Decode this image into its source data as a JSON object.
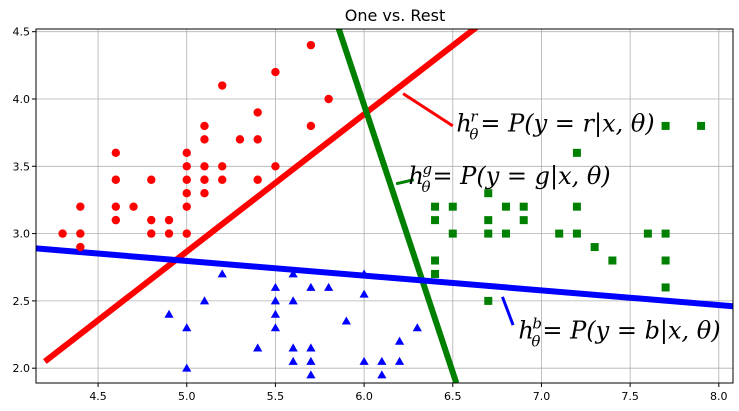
{
  "chart_data": {
    "type": "scatter",
    "title": "One vs. Rest",
    "xlim": [
      4.15,
      8.08
    ],
    "ylim": [
      1.89,
      4.52
    ],
    "grid": true,
    "x_ticks": [
      "4.5",
      "5.0",
      "5.5",
      "6.0",
      "6.5",
      "7.0",
      "7.5",
      "8.0"
    ],
    "y_ticks": [
      "2.0",
      "2.5",
      "3.0",
      "3.5",
      "4.0",
      "4.5"
    ],
    "series": [
      {
        "marker": "circle",
        "color": "#ff0000",
        "points": [
          [
            4.3,
            3.0
          ],
          [
            4.4,
            2.9
          ],
          [
            4.4,
            3.0
          ],
          [
            4.4,
            3.2
          ],
          [
            4.6,
            3.1
          ],
          [
            4.6,
            3.2
          ],
          [
            4.6,
            3.4
          ],
          [
            4.6,
            3.6
          ],
          [
            4.7,
            3.2
          ],
          [
            4.8,
            3.0
          ],
          [
            4.8,
            3.1
          ],
          [
            4.8,
            3.4
          ],
          [
            4.9,
            3.0
          ],
          [
            4.9,
            3.1
          ],
          [
            5.0,
            3.0
          ],
          [
            5.0,
            3.2
          ],
          [
            5.0,
            3.3
          ],
          [
            5.0,
            3.4
          ],
          [
            5.0,
            3.5
          ],
          [
            5.0,
            3.6
          ],
          [
            5.1,
            3.3
          ],
          [
            5.1,
            3.4
          ],
          [
            5.1,
            3.5
          ],
          [
            5.1,
            3.7
          ],
          [
            5.1,
            3.8
          ],
          [
            5.2,
            3.4
          ],
          [
            5.2,
            3.5
          ],
          [
            5.2,
            4.1
          ],
          [
            5.3,
            3.7
          ],
          [
            5.4,
            3.4
          ],
          [
            5.4,
            3.7
          ],
          [
            5.4,
            3.9
          ],
          [
            5.5,
            3.5
          ],
          [
            5.5,
            4.2
          ],
          [
            5.7,
            3.8
          ],
          [
            5.7,
            4.4
          ],
          [
            5.8,
            4.0
          ]
        ]
      },
      {
        "marker": "square",
        "color": "#008000",
        "points": [
          [
            6.4,
            2.7
          ],
          [
            6.4,
            2.8
          ],
          [
            6.4,
            3.1
          ],
          [
            6.4,
            3.2
          ],
          [
            6.5,
            3.0
          ],
          [
            6.5,
            3.2
          ],
          [
            6.7,
            2.5
          ],
          [
            6.7,
            3.0
          ],
          [
            6.7,
            3.1
          ],
          [
            6.7,
            3.3
          ],
          [
            6.8,
            3.0
          ],
          [
            6.8,
            3.2
          ],
          [
            6.9,
            3.1
          ],
          [
            6.9,
            3.2
          ],
          [
            7.1,
            3.0
          ],
          [
            7.2,
            3.0
          ],
          [
            7.2,
            3.2
          ],
          [
            7.2,
            3.6
          ],
          [
            7.3,
            2.9
          ],
          [
            7.4,
            2.8
          ],
          [
            7.6,
            3.0
          ],
          [
            7.7,
            2.6
          ],
          [
            7.7,
            2.8
          ],
          [
            7.7,
            3.0
          ],
          [
            7.7,
            3.8
          ],
          [
            7.9,
            3.8
          ]
        ]
      },
      {
        "marker": "triangle",
        "color": "#0000ff",
        "points": [
          [
            4.9,
            2.4
          ],
          [
            5.0,
            2.0
          ],
          [
            5.0,
            2.3
          ],
          [
            5.1,
            2.5
          ],
          [
            5.2,
            2.7
          ],
          [
            5.4,
            2.15
          ],
          [
            5.5,
            2.3
          ],
          [
            5.5,
            2.4
          ],
          [
            5.5,
            2.5
          ],
          [
            5.5,
            2.6
          ],
          [
            5.6,
            2.05
          ],
          [
            5.6,
            2.15
          ],
          [
            5.6,
            2.5
          ],
          [
            5.6,
            2.7
          ],
          [
            5.7,
            1.95
          ],
          [
            5.7,
            2.05
          ],
          [
            5.7,
            2.15
          ],
          [
            5.7,
            2.6
          ],
          [
            5.8,
            2.6
          ],
          [
            5.9,
            2.35
          ],
          [
            6.0,
            2.05
          ],
          [
            6.0,
            2.55
          ],
          [
            6.0,
            2.7
          ],
          [
            6.1,
            1.95
          ],
          [
            6.1,
            2.05
          ],
          [
            6.2,
            2.05
          ],
          [
            6.2,
            2.2
          ],
          [
            6.3,
            2.3
          ]
        ]
      }
    ],
    "lines": [
      {
        "color": "#ff0000",
        "from": [
          4.2,
          2.05
        ],
        "to": [
          6.65,
          4.55
        ]
      },
      {
        "color": "#008000",
        "from": [
          5.85,
          4.55
        ],
        "to": [
          6.52,
          1.89
        ]
      },
      {
        "color": "#0000ff",
        "from": [
          4.15,
          2.89
        ],
        "to": [
          8.08,
          2.46
        ]
      }
    ],
    "annotations": [
      {
        "text": "h",
        "sup": "r",
        "sub": "θ",
        "rest": " = P(y = r|x, θ)",
        "at": [
          6.52,
          3.76
        ],
        "pointer_from": [
          6.5,
          3.8
        ],
        "pointer_to": [
          6.22,
          4.04
        ],
        "color": "#ff0000"
      },
      {
        "text": "h",
        "sup": "g",
        "sub": "θ",
        "rest": " = P(y = g|x, θ)",
        "at": [
          6.25,
          3.37
        ],
        "pointer_from": [
          6.28,
          3.4
        ],
        "pointer_to": [
          6.18,
          3.37
        ],
        "color": "#008000"
      },
      {
        "text": "h",
        "sup": "b",
        "sub": "θ",
        "rest": " = P(y = b|x, θ)",
        "at": [
          6.87,
          2.22
        ],
        "pointer_from": [
          6.84,
          2.32
        ],
        "pointer_to": [
          6.78,
          2.53
        ],
        "color": "#0000ff"
      }
    ]
  }
}
